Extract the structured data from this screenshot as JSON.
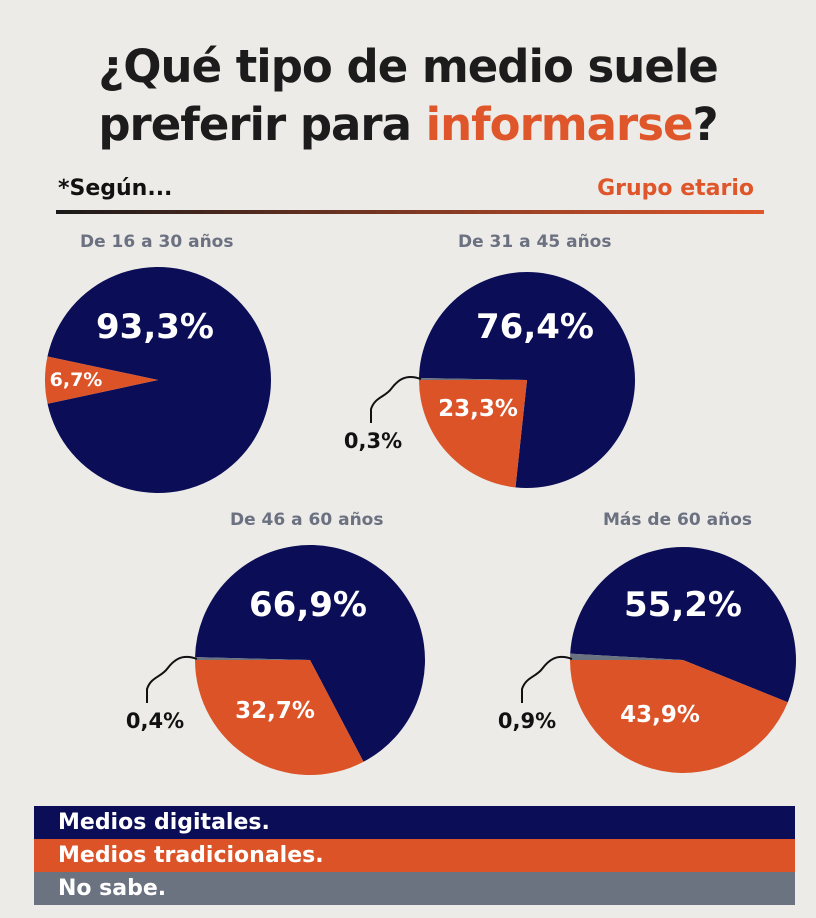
{
  "title": {
    "line1": "¿Qué tipo de medio suele",
    "line2_prefix": "preferir para ",
    "line2_highlight": "informarse",
    "line2_suffix": "?"
  },
  "header": {
    "left": "*Según...",
    "right": "Grupo etario"
  },
  "colors": {
    "digital": "#0b0d57",
    "traditional": "#dc5328",
    "unknown": "#6b7280"
  },
  "legend": [
    "Medios digitales.",
    "Medios tradicionales.",
    "No sabe."
  ],
  "chart_data": [
    {
      "type": "pie",
      "title": "De 16 a 30 años",
      "labels": [
        "Medios digitales",
        "Medios tradicionales",
        "No sabe"
      ],
      "values": [
        93.3,
        6.7,
        0
      ],
      "value_labels": [
        "93,3%",
        "6,7%",
        ""
      ]
    },
    {
      "type": "pie",
      "title": "De 31 a 45 años",
      "labels": [
        "Medios digitales",
        "Medios tradicionales",
        "No sabe"
      ],
      "values": [
        76.4,
        23.3,
        0.3
      ],
      "value_labels": [
        "76,4%",
        "23,3%",
        "0,3%"
      ]
    },
    {
      "type": "pie",
      "title": "De 46 a 60 años",
      "labels": [
        "Medios digitales",
        "Medios tradicionales",
        "No sabe"
      ],
      "values": [
        66.9,
        32.7,
        0.4
      ],
      "value_labels": [
        "66,9%",
        "32,7%",
        "0,4%"
      ]
    },
    {
      "type": "pie",
      "title": "Más de 60 años",
      "labels": [
        "Medios digitales",
        "Medios tradicionales",
        "No sabe"
      ],
      "values": [
        55.2,
        43.9,
        0.9
      ],
      "value_labels": [
        "55,2%",
        "43,9%",
        "0,9%"
      ]
    }
  ]
}
